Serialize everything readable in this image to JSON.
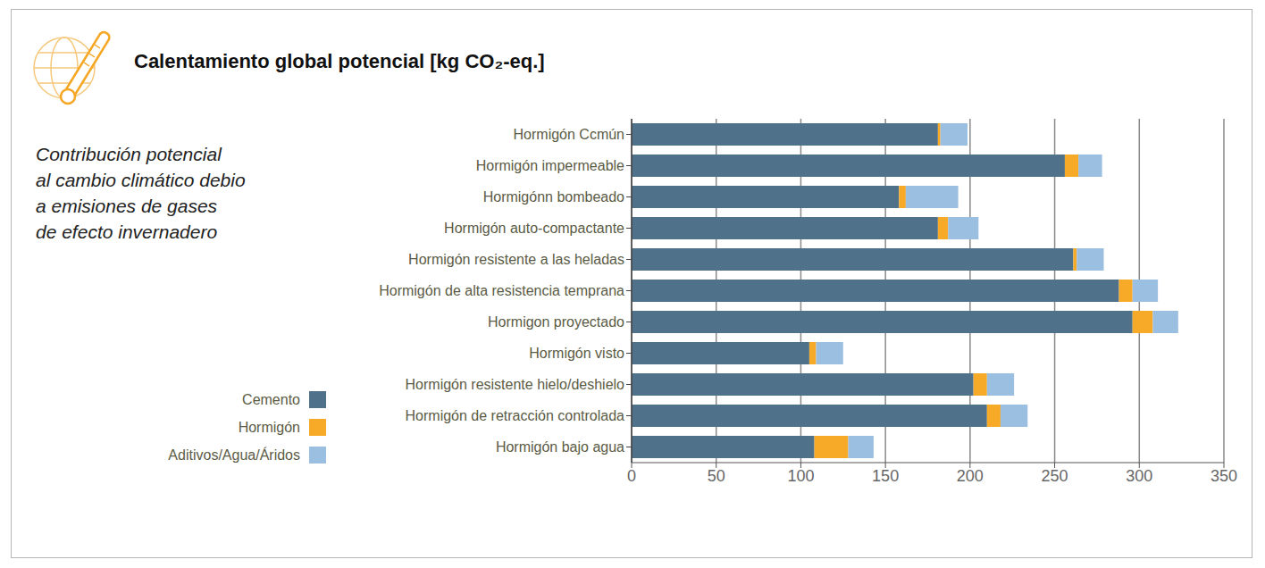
{
  "chart_data": {
    "type": "bar",
    "orientation": "horizontal",
    "stacked": true,
    "title": "Calentamiento global potencial [kg CO₂-eq.]",
    "subtitle": "Contribución potencial\nal cambio climático debio\na emisiones de gases\nde efecto invernadero",
    "categories": [
      "Hormigón Ccmún",
      "Hormigón impermeable",
      "Hormigónn bombeado",
      "Hormigón auto-compactante",
      "Hormigón resistente a las heladas",
      "Hormigón de alta resistencia temprana",
      "Hormigon proyectado",
      "Hormigón visto",
      "Hormigón resistente hielo/deshielo",
      "Hormigón de retracción controlada",
      "Hormigón bajo agua"
    ],
    "series": [
      {
        "name": "Cemento",
        "color": "#4f7189",
        "values": [
          181,
          256,
          158,
          181,
          261,
          288,
          296,
          105,
          202,
          210,
          108
        ]
      },
      {
        "name": "Hormigón",
        "color": "#f7a928",
        "values": [
          1.5,
          8,
          4,
          6,
          2,
          8,
          12,
          4,
          8,
          8,
          20
        ]
      },
      {
        "name": "Aditivos/Agua/Áridos",
        "color": "#9bbfe0",
        "values": [
          16,
          14,
          31,
          18,
          16,
          15,
          15,
          16,
          16,
          16,
          15
        ]
      }
    ],
    "xlim": [
      0,
      350
    ],
    "xticks": [
      0,
      50,
      100,
      150,
      200,
      250,
      300,
      350
    ],
    "grid": true,
    "legend": "lower left"
  }
}
